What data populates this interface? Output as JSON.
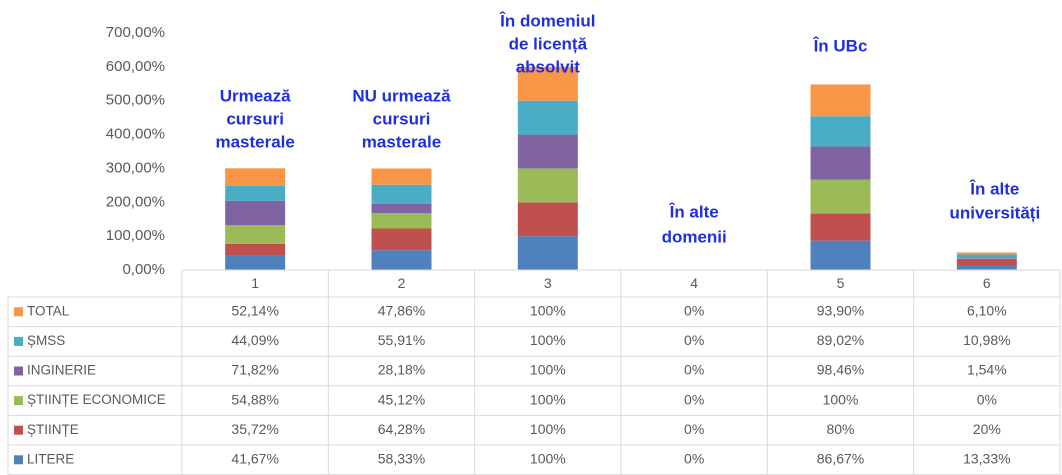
{
  "chart_data": {
    "type": "stacked_bar",
    "categories": [
      "1",
      "2",
      "3",
      "4",
      "5",
      "6"
    ],
    "annotations": [
      {
        "lines": [
          "Urmează",
          "cursuri",
          "masterale"
        ]
      },
      {
        "lines": [
          "NU urmează",
          "cursuri",
          "masterale"
        ]
      },
      {
        "lines": [
          "În domeniul",
          "de licență",
          "absolvit"
        ]
      },
      {
        "lines": [
          "În alte",
          "domenii"
        ]
      },
      {
        "lines": [
          "În UBc"
        ]
      },
      {
        "lines": [
          "În alte",
          "universități"
        ]
      }
    ],
    "series": [
      {
        "name": "LITERE",
        "color": "#4f81bd",
        "values": [
          41.67,
          58.33,
          100,
          0,
          86.67,
          13.33
        ],
        "value_labels": [
          "41,67%",
          "58,33%",
          "100%",
          "0%",
          "86,67%",
          "13,33%"
        ]
      },
      {
        "name": "ȘTIINȚE",
        "color": "#c0504d",
        "values": [
          35.72,
          64.28,
          100,
          0,
          80,
          20
        ],
        "value_labels": [
          "35,72%",
          "64,28%",
          "100%",
          "0%",
          "80%",
          "20%"
        ]
      },
      {
        "name": "ȘTIINȚE ECONOMICE",
        "color": "#9bbb59",
        "values": [
          54.88,
          45.12,
          100,
          0,
          100,
          0
        ],
        "value_labels": [
          "54,88%",
          "45,12%",
          "100%",
          "0%",
          "100%",
          "0%"
        ]
      },
      {
        "name": "INGINERIE",
        "color": "#8064a2",
        "values": [
          71.82,
          28.18,
          100,
          0,
          98.46,
          1.54
        ],
        "value_labels": [
          "71,82%",
          "28,18%",
          "100%",
          "0%",
          "98,46%",
          "1,54%"
        ]
      },
      {
        "name": "ȘMSS",
        "color": "#4bacc6",
        "values": [
          44.09,
          55.91,
          100,
          0,
          89.02,
          10.98
        ],
        "value_labels": [
          "44,09%",
          "55,91%",
          "100%",
          "0%",
          "89,02%",
          "10,98%"
        ]
      },
      {
        "name": "TOTAL",
        "color": "#f79646",
        "values": [
          52.14,
          47.86,
          100,
          0,
          93.9,
          6.1
        ],
        "value_labels": [
          "52,14%",
          "47,86%",
          "100%",
          "0%",
          "93,90%",
          "6,10%"
        ]
      }
    ],
    "ylim": [
      0,
      700
    ],
    "yticks": [
      {
        "value": 0,
        "label": "0,00%"
      },
      {
        "value": 100,
        "label": "100,00%"
      },
      {
        "value": 200,
        "label": "200,00%"
      },
      {
        "value": 300,
        "label": "300,00%"
      },
      {
        "value": 400,
        "label": "400,00%"
      },
      {
        "value": 500,
        "label": "500,00%"
      },
      {
        "value": 600,
        "label": "600,00%"
      },
      {
        "value": 700,
        "label": "700,00%"
      }
    ],
    "grid": false
  }
}
